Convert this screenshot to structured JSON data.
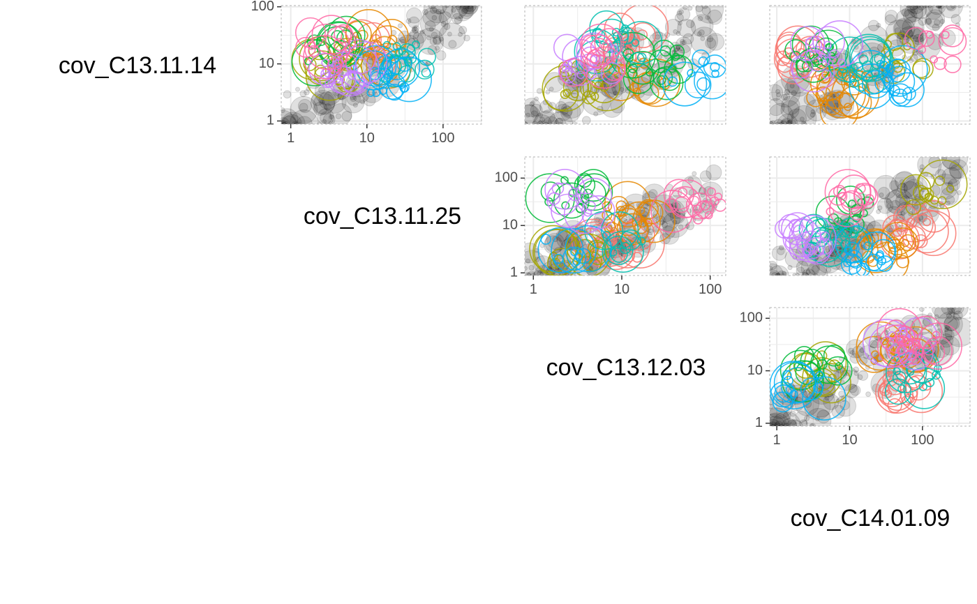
{
  "chart_data": {
    "type": "scatter",
    "layout": "pairs-matrix",
    "scale": "log10",
    "variables": [
      "cov_C13.11.14",
      "cov_C13.11.25",
      "cov_C13.12.03",
      "cov_C14.01.09"
    ],
    "tick_labels": [
      "1",
      "10",
      "100"
    ],
    "tick_values": [
      1,
      10,
      100
    ],
    "grid": true,
    "colors": {
      "background_points": "#000000",
      "clusters": [
        "#F8766D",
        "#E58700",
        "#A3A500",
        "#00BA38",
        "#00C0AF",
        "#00B0F6",
        "#C77CFF",
        "#FF67A4"
      ]
    },
    "panels": [
      {
        "x_var": "cov_C13.11.14",
        "y_var": "cov_C13.11.14",
        "show_x_ticks": true,
        "show_y_ticks": true,
        "xlim": [
          0.75,
          320
        ],
        "ylim": [
          0.88,
          105
        ]
      },
      {
        "x_var": "cov_C13.11.25",
        "y_var": "cov_C13.11.14",
        "show_x_ticks": false,
        "show_y_ticks": false,
        "xlim": [
          0.8,
          150
        ],
        "ylim": [
          0.88,
          105
        ]
      },
      {
        "x_var": "cov_C14.01.09",
        "y_var": "cov_C13.11.14",
        "show_x_ticks": false,
        "show_y_ticks": false,
        "xlim": [
          0.8,
          450
        ],
        "ylim": [
          0.88,
          105
        ]
      },
      {
        "x_var": "cov_C13.11.25",
        "y_var": "cov_C13.11.25",
        "show_x_ticks": true,
        "show_y_ticks": true,
        "xlim": [
          0.8,
          150
        ],
        "ylim": [
          0.88,
          280
        ]
      },
      {
        "x_var": "cov_C14.01.09",
        "y_var": "cov_C13.11.25",
        "show_x_ticks": false,
        "show_y_ticks": false,
        "xlim": [
          0.8,
          450
        ],
        "ylim": [
          0.88,
          280
        ]
      },
      {
        "x_var": "cov_C14.01.09",
        "y_var": "cov_C13.12.03",
        "show_x_ticks": true,
        "show_y_ticks": true,
        "xlim": [
          0.8,
          450
        ],
        "ylim": [
          0.88,
          160
        ]
      }
    ]
  }
}
